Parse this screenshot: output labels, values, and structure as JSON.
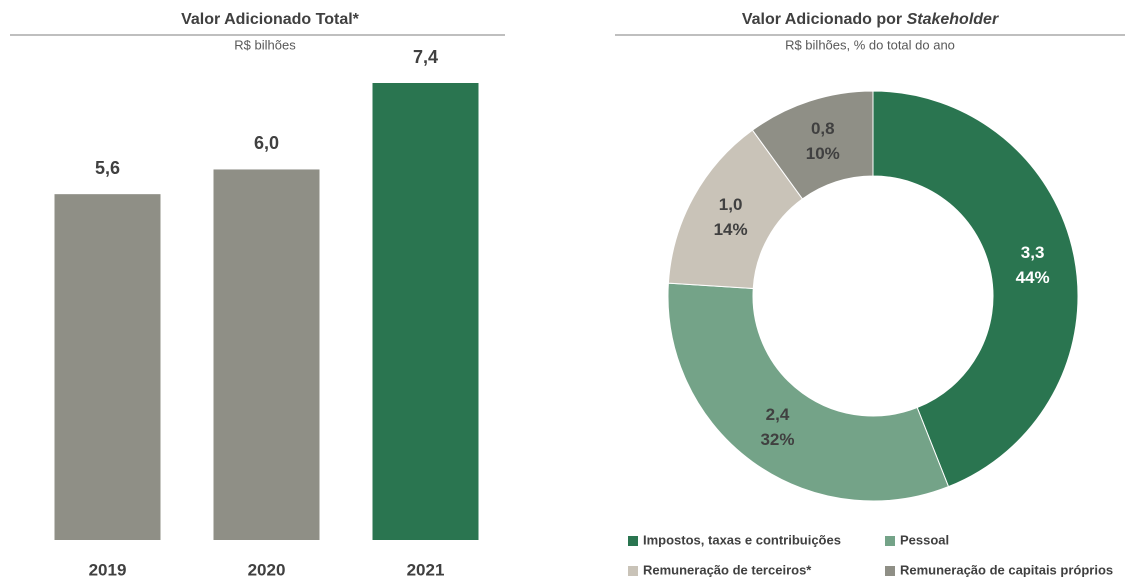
{
  "chart_data": [
    {
      "type": "bar",
      "title": "Valor Adicionado Total*",
      "subtitle": "R$ bilhões",
      "categories": [
        "2019",
        "2020",
        "2021"
      ],
      "values": [
        5.6,
        6.0,
        7.4
      ],
      "value_labels": [
        "5,6",
        "6,0",
        "7,4"
      ],
      "colors": [
        "#8f8f86",
        "#8f8f86",
        "#2a7550"
      ]
    },
    {
      "type": "pie",
      "title": [
        "Valor Adicionado por",
        "Stakeholder"
      ],
      "subtitle": "R$ bilhões, % do total do ano",
      "categories": [
        "Impostos, taxas e contribuições",
        "Pessoal",
        "Remuneração de terceiros*",
        "Remuneração de capitais próprios"
      ],
      "values": [
        44,
        32,
        14,
        10
      ],
      "value_labels": [
        "44%",
        "32%",
        "14%",
        "10%"
      ],
      "amounts": [
        3.3,
        2.4,
        1.0,
        0.8
      ],
      "amount_labels": [
        "3,3",
        "2,4",
        "1,0",
        "0,8"
      ],
      "colors": [
        "#2a7550",
        "#74a388",
        "#c9c3b8",
        "#8f8f86"
      ]
    }
  ]
}
